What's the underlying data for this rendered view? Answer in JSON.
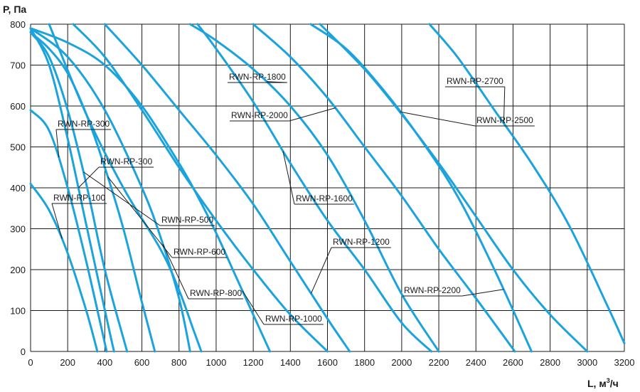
{
  "chart_data": {
    "type": "line",
    "title": "",
    "ylabel": "P, Па",
    "xlabel_main": "L, м",
    "xlabel_sup": "3",
    "xlabel_tail": "/ч",
    "xlim": [
      0,
      3200
    ],
    "ylim": [
      0,
      800
    ],
    "x_ticks": [
      0,
      200,
      400,
      600,
      800,
      1000,
      1200,
      1400,
      1600,
      1800,
      2000,
      2200,
      2400,
      2600,
      2800,
      3000,
      3200
    ],
    "y_ticks": [
      0,
      100,
      200,
      300,
      400,
      500,
      600,
      700,
      800
    ],
    "grid": true,
    "line_color": "#1aa3dd",
    "series": [
      {
        "name": "RWN-RP-100",
        "x": [
          0,
          100,
          200,
          300,
          360
        ],
        "y": [
          410,
          345,
          240,
          100,
          0
        ]
      },
      {
        "name": "RWN-RP-300",
        "x": [
          0,
          100,
          200,
          300,
          410
        ],
        "y": [
          590,
          540,
          400,
          220,
          0
        ]
      },
      {
        "name": "RWN-RP-300",
        "x": [
          0,
          100,
          200,
          300,
          420,
          450
        ],
        "y": [
          790,
          700,
          520,
          310,
          60,
          0
        ]
      },
      {
        "name": "RWN-RP-500",
        "x": [
          0,
          100,
          200,
          300,
          400,
          520
        ],
        "y": [
          780,
          720,
          590,
          410,
          200,
          0
        ]
      },
      {
        "name": "RWN-RP-600",
        "x": [
          0,
          100,
          200,
          300,
          400,
          500,
          600,
          670
        ],
        "y": [
          780,
          740,
          680,
          580,
          450,
          300,
          120,
          0
        ]
      },
      {
        "name": "RWN-RP-800",
        "x": [
          0,
          200,
          400,
          600,
          700,
          800,
          860
        ],
        "y": [
          790,
          720,
          590,
          400,
          280,
          130,
          0
        ]
      },
      {
        "name": "RWN-RP-1000",
        "x": [
          0,
          200,
          400,
          600,
          800,
          900,
          1000,
          1100,
          1200,
          1290
        ],
        "y": [
          790,
          755,
          700,
          600,
          460,
          380,
          290,
          190,
          90,
          0
        ]
      },
      {
        "name": "",
        "x": [
          100,
          300,
          500,
          700,
          800,
          880,
          920
        ],
        "y": [
          800,
          580,
          400,
          250,
          150,
          50,
          0
        ]
      },
      {
        "name": "",
        "x": [
          230,
          400,
          600,
          800,
          1000,
          1200,
          1400,
          1600
        ],
        "y": [
          800,
          720,
          590,
          450,
          320,
          200,
          90,
          0
        ]
      },
      {
        "name": "RWN-RP-1200",
        "x": [
          400,
          600,
          800,
          1000,
          1200,
          1400,
          1600,
          1720
        ],
        "y": [
          800,
          700,
          590,
          480,
          360,
          220,
          80,
          0
        ]
      },
      {
        "name": "RWN-RP-1600",
        "x": [
          900,
          1000,
          1200,
          1400,
          1600,
          1800,
          2000,
          2160
        ],
        "y": [
          800,
          740,
          610,
          460,
          320,
          200,
          70,
          0
        ]
      },
      {
        "name": "RWN-RP-1800",
        "x": [
          860,
          1000,
          1200,
          1400,
          1600,
          1800,
          2000,
          2200
        ],
        "y": [
          800,
          760,
          690,
          600,
          480,
          320,
          140,
          0
        ]
      },
      {
        "name": "RWN-RP-2000",
        "x": [
          1200,
          1400,
          1600,
          1800,
          2000,
          2200,
          2400,
          2610
        ],
        "y": [
          800,
          720,
          620,
          500,
          380,
          250,
          130,
          0
        ]
      },
      {
        "name": "RWN-RP-2200",
        "x": [
          1510,
          1700,
          1900,
          2100,
          2300,
          2500,
          2700
        ],
        "y": [
          800,
          740,
          640,
          520,
          380,
          200,
          0
        ]
      },
      {
        "name": "RWN-RP-2500",
        "x": [
          1560,
          1800,
          2000,
          2200,
          2400,
          2600,
          2800,
          3000
        ],
        "y": [
          800,
          690,
          580,
          460,
          330,
          200,
          90,
          0
        ]
      },
      {
        "name": "RWN-RP-2700",
        "x": [
          2150,
          2300,
          2500,
          2700,
          2900,
          3100,
          3200
        ],
        "y": [
          800,
          720,
          590,
          460,
          310,
          120,
          20
        ]
      }
    ],
    "annotations": [
      {
        "text": "RWN-RP-100",
        "curve": 0
      },
      {
        "text": "RWN-RP-300",
        "curve": 1
      },
      {
        "text": "RWN-RP-300",
        "curve": 2
      },
      {
        "text": "RWN-RP-500",
        "curve": 3
      },
      {
        "text": "RWN-RP-600",
        "curve": 4
      },
      {
        "text": "RWN-RP-800",
        "curve": 5
      },
      {
        "text": "RWN-RP-1000",
        "curve": 6
      },
      {
        "text": "RWN-RP-1200",
        "curve": 9
      },
      {
        "text": "RWN-RP-1600",
        "curve": 10
      },
      {
        "text": "RWN-RP-1800",
        "curve": 11
      },
      {
        "text": "RWN-RP-2000",
        "curve": 12
      },
      {
        "text": "RWN-RP-2200",
        "curve": 13
      },
      {
        "text": "RWN-RP-2500",
        "curve": 14
      },
      {
        "text": "RWN-RP-2700",
        "curve": 15
      }
    ]
  }
}
